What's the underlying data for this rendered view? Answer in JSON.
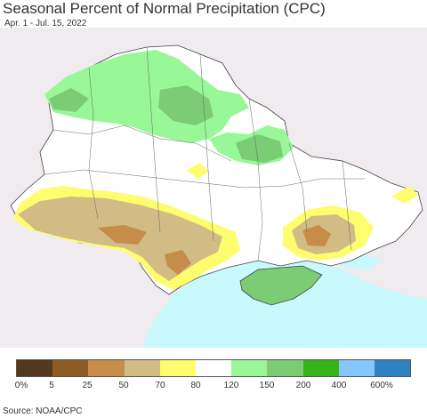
{
  "header": {
    "title": "Seasonal Percent of Normal Precipitation (CPC)",
    "subtitle": "Apr. 1 - Jul. 15, 2022"
  },
  "legend": {
    "labels": [
      "0%",
      "5",
      "25",
      "50",
      "70",
      "80",
      "120",
      "150",
      "200",
      "400",
      "600%"
    ],
    "colors": [
      "#54381b",
      "#8c5a23",
      "#c68c4a",
      "#d2bc85",
      "#fdfd6e",
      "#ffffff",
      "#98f797",
      "#7bcc74",
      "#38b41b",
      "#82c8ff",
      "#2f82c1"
    ]
  },
  "map_colors": {
    "land_outside": "#efebef",
    "sea": "#c8fafd",
    "border": "#444444"
  },
  "footer": {
    "source": "Source: NOAA/CPC"
  }
}
